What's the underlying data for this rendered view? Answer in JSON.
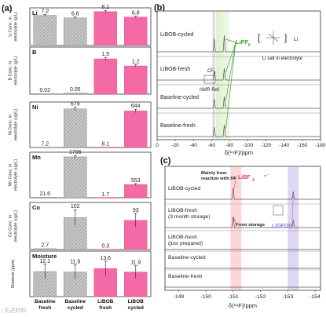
{
  "panel_labels": {
    "a": "(a)",
    "b": "(b)",
    "c": "(c)"
  },
  "chart_data": [
    {
      "type": "bar",
      "panel": "a",
      "categories": [
        "Baseline fresh",
        "Baseline cycled",
        "LiBOB fresh",
        "LiBOB cycled"
      ],
      "category_lines": [
        [
          "Baseline",
          "fresh"
        ],
        [
          "Baseline",
          "cycled"
        ],
        [
          "LiBOB",
          "fresh"
        ],
        [
          "LiBOB",
          "cycled"
        ]
      ],
      "colors": {
        "baseline": "#b9b9b9",
        "libob": "#f46aa6"
      },
      "subplots": [
        {
          "element": "Li",
          "ylabel_lines": [
            "Li Conc. in",
            "electrolyte (g/L)"
          ],
          "values": [
            7.2,
            6.6,
            8.1,
            6.8
          ],
          "labels": [
            "7.2",
            "6.6",
            "8.1",
            "6.8"
          ],
          "errors": [
            0.2,
            0.2,
            0.3,
            0.2
          ],
          "ylim": [
            0,
            9
          ]
        },
        {
          "element": "B",
          "ylabel_lines": [
            "B Conc. in",
            "electrolyte (g/L)"
          ],
          "values": [
            0.02,
            0.05,
            1.5,
            1.2
          ],
          "labels": [
            "0.02",
            "0.05",
            "1.5",
            "1.2"
          ],
          "errors": [
            0.01,
            0.01,
            0.06,
            0.05
          ],
          "ylim": [
            0,
            2
          ]
        },
        {
          "element": "Ni",
          "ylabel_lines": [
            "Ni Conc. in",
            "electrolyte (ug/L)"
          ],
          "values": [
            7.2,
            679,
            8.1,
            644
          ],
          "labels": [
            "7.2",
            "679",
            "8.1",
            "644"
          ],
          "errors": [
            1,
            30,
            1,
            30
          ],
          "ylim": [
            0,
            800
          ]
        },
        {
          "element": "Mn",
          "ylabel_lines": [
            "Mn Conc. in",
            "electrolyte (ug/L)"
          ],
          "values": [
            21.6,
            1706,
            1.7,
            553
          ],
          "labels": [
            "21.6",
            "1706",
            "1.7",
            "553"
          ],
          "errors": [
            3,
            60,
            1,
            40
          ],
          "ylim": [
            0,
            1900
          ]
        },
        {
          "element": "Co",
          "ylabel_lines": [
            "Co Conc. in",
            "electrolyte (ug/L)"
          ],
          "values": [
            2.7,
            102,
            0.3,
            93
          ],
          "labels": [
            "2.7",
            "102",
            "0.3",
            "93"
          ],
          "errors": [
            1.5,
            25,
            0.5,
            22
          ],
          "ylim": [
            0,
            150
          ]
        },
        {
          "element": "Moisture",
          "ylabel_lines": [
            "Moisture (ppm)"
          ],
          "values": [
            12.1,
            11.9,
            13.6,
            11.9
          ],
          "labels": [
            "12.1",
            "11.9",
            "13.6",
            "11.9"
          ],
          "errors": [
            3.5,
            3.5,
            3.5,
            3.0
          ],
          "ylim": [
            0,
            22
          ]
        }
      ]
    },
    {
      "type": "line",
      "panel": "b",
      "xlabel": "δ(¹⁹F)/ppm",
      "xlim": [
        0,
        -180
      ],
      "xticks": [
        0,
        -20,
        -40,
        -60,
        -80,
        -100,
        -120,
        -140,
        -160,
        -180
      ],
      "xtick_labels": [
        "0",
        "-20",
        "-40",
        "-60",
        "-80",
        "-100",
        "-120",
        "-140",
        "-160",
        "-180"
      ],
      "series": [
        {
          "name": "LiBOB-cycled",
          "peaks": [
            -63,
            -74
          ]
        },
        {
          "name": "LiBOB-fresh",
          "peaks": [
            -63,
            -74
          ]
        },
        {
          "name": "Baseline-cycled",
          "peaks": [
            -63,
            -74
          ]
        },
        {
          "name": "Baseline-fresh",
          "peaks": [
            -63,
            -74
          ]
        }
      ],
      "highlight_band": [
        -65,
        -80
      ],
      "annotations": {
        "lipf6": "LiPF",
        "lipf6_sub": "6",
        "li_plus": "Li",
        "salt": "Li salt in electrolyte",
        "nmr_ref": "NMR Ref.",
        "cf3": "CF",
        "cf3_sub": "3"
      }
    },
    {
      "type": "line",
      "panel": "c",
      "xlabel": "δ(¹⁹F)/ppm",
      "xlim": [
        -148.5,
        -154.2
      ],
      "xticks": [
        -149,
        -150,
        -151,
        -152,
        -153,
        -154
      ],
      "xtick_labels": [
        "-149",
        "-150",
        "-151",
        "-152",
        "-153",
        "-154"
      ],
      "series": [
        {
          "name_lines": [
            "LiBOB-cycled"
          ],
          "peaks": [
            -151.0,
            -153.2
          ]
        },
        {
          "name_lines": [
            "LiBOB-fresh",
            "(3 month storage)"
          ],
          "peaks": [
            -151.0,
            -153.2
          ]
        },
        {
          "name_lines": [
            "LiBOB-fresh",
            "(just prepared)"
          ],
          "peaks": []
        },
        {
          "name_lines": [
            "Baseline-cycled"
          ],
          "peaks": []
        },
        {
          "name_lines": [
            "Baseline-fresh"
          ],
          "peaks": []
        }
      ],
      "bands": [
        {
          "name": "LiBF4",
          "range": [
            -150.9,
            -151.3
          ],
          "color": "#f7a6a6"
        },
        {
          "name": "LiDFOB",
          "range": [
            -153.0,
            -153.4
          ],
          "color": "#b7a3e6"
        }
      ],
      "annotations": {
        "hf_note_lines": [
          "Mainly from",
          "reaction with HF"
        ],
        "libf4": "LiBF",
        "libf4_sub": "4",
        "storage_note": "From storage",
        "lidfob": "LiDFOB"
      }
    }
  ],
  "watermark": "i 先进材料"
}
